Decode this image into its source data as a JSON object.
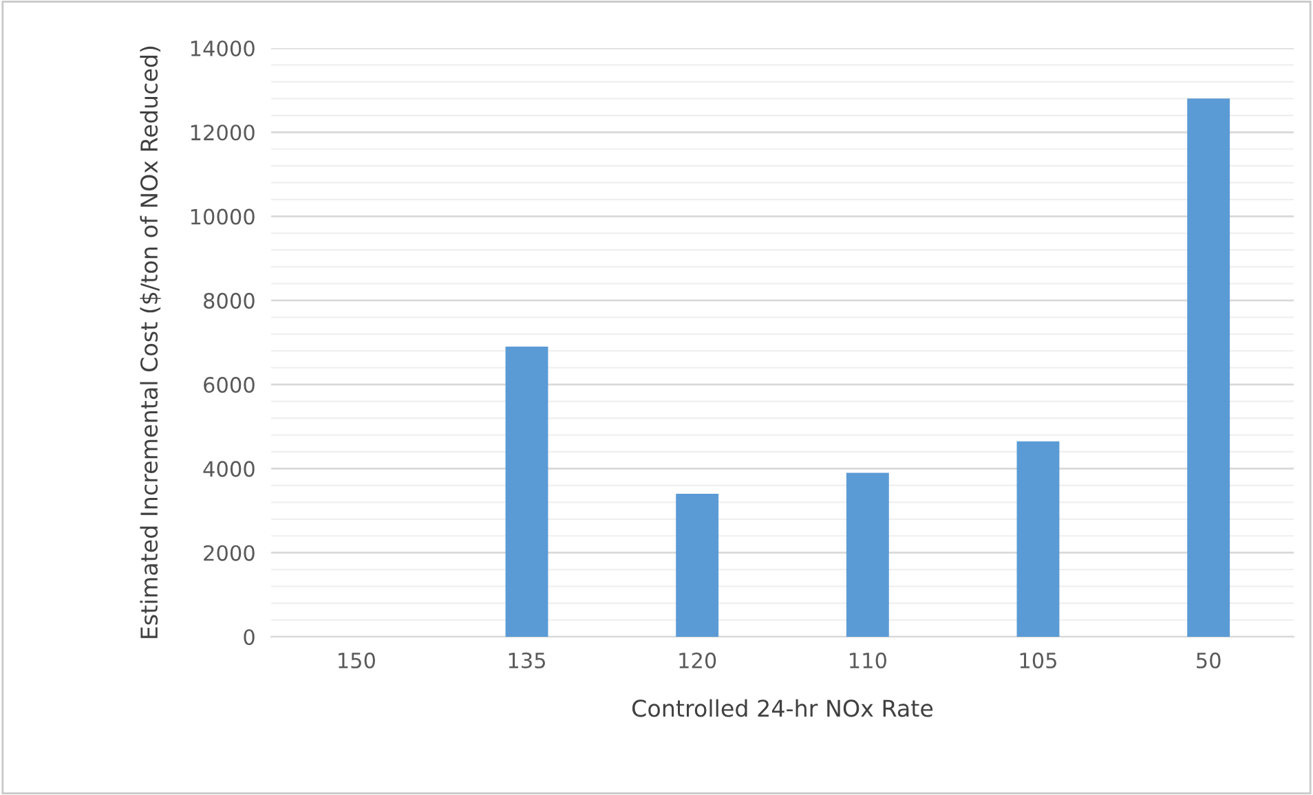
{
  "chart_data": {
    "type": "bar",
    "xlabel": "Controlled 24-hr NOx Rate",
    "ylabel": "Estimated Incremental Cost ($/ton of NOx Reduced)",
    "categories": [
      "150",
      "135",
      "120",
      "110",
      "105",
      "50"
    ],
    "values": [
      0,
      6900,
      3400,
      3900,
      4650,
      12800
    ],
    "color": "#5b9bd5",
    "ylim": [
      0,
      14000
    ],
    "yticks": [
      0,
      2000,
      4000,
      6000,
      8000,
      10000,
      12000,
      14000
    ],
    "grid": "y",
    "legend": false
  }
}
